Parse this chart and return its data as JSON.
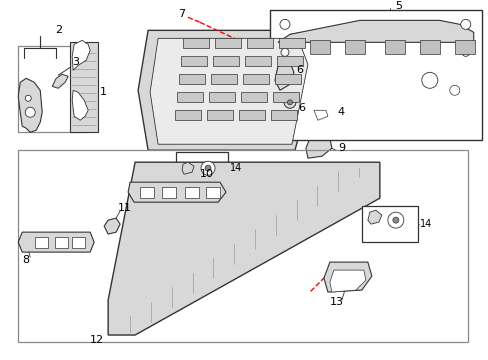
{
  "bg_color": "#ffffff",
  "lc": "#333333",
  "rc": "#ff0000",
  "gray": "#d8d8d8",
  "dgray": "#888888",
  "figsize": [
    4.89,
    3.6
  ],
  "dpi": 100
}
